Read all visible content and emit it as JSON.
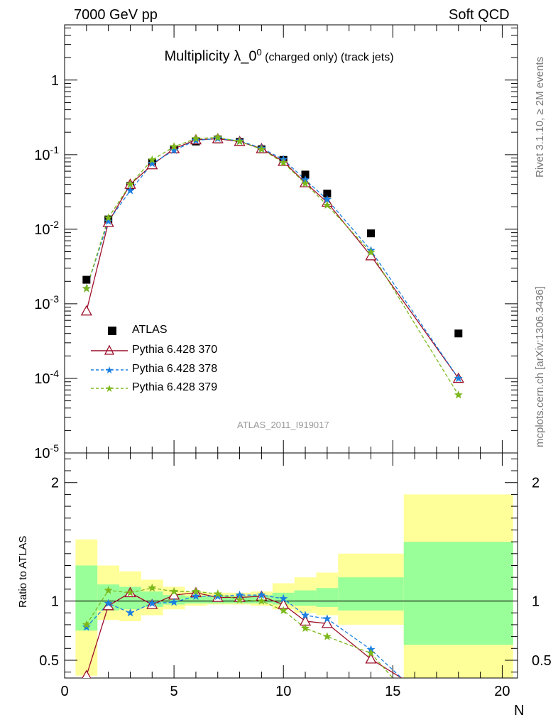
{
  "header": {
    "left": "7000 GeV pp",
    "right": "Soft QCD"
  },
  "title": {
    "main": "Multiplicity λ_0",
    "sup": "0",
    "sub": " (charged only) (track jets)"
  },
  "side_text": {
    "rivet": "Rivet 3.1.10, ≥ 2M events",
    "mcplots": "mcplots.cern.ch [arXiv:1306.3436]"
  },
  "watermark": "ATLAS_2011_I919017",
  "legend": {
    "atlas": "ATLAS",
    "s370": "Pythia 6.428 370",
    "s378": "Pythia 6.428 378",
    "s379": "Pythia 6.428 379"
  },
  "axes": {
    "xlabel": "N",
    "ratio_ylabel": "Ratio to ATLAS"
  },
  "colors": {
    "atlas": "#000000",
    "s370": "#9c0f2a",
    "s378": "#1a7fe0",
    "s379": "#7cb81c",
    "band_outer": "#ffff99",
    "band_inner": "#99ff99"
  },
  "chart_data": [
    {
      "type": "scatter",
      "panel": "main",
      "yscale": "log",
      "xlim": [
        0,
        20.7
      ],
      "ylim": [
        1e-05,
        5.5
      ],
      "y_tick_labels": [
        "10^-5",
        "10^-4",
        "10^-3",
        "10^-2",
        "10^-1",
        "1"
      ],
      "series": [
        {
          "name": "ATLAS",
          "x": [
            1,
            2,
            3,
            4,
            5,
            6,
            7,
            8,
            9,
            10,
            11,
            12,
            14,
            18
          ],
          "values": [
            0.0021,
            0.0135,
            0.038,
            0.078,
            0.118,
            0.15,
            0.16,
            0.148,
            0.118,
            0.085,
            0.054,
            0.03,
            0.0088,
            0.0004
          ]
        },
        {
          "name": "Pythia 6.428 370",
          "x": [
            1,
            2,
            3,
            4,
            5,
            6,
            7,
            8,
            9,
            10,
            11,
            12,
            14,
            18
          ],
          "values": [
            0.0008,
            0.0123,
            0.04,
            0.073,
            0.12,
            0.158,
            0.163,
            0.15,
            0.12,
            0.081,
            0.042,
            0.023,
            0.0044,
            0.0001
          ]
        },
        {
          "name": "Pythia 6.428 378",
          "x": [
            1,
            2,
            3,
            4,
            5,
            6,
            7,
            8,
            9,
            10,
            11,
            12,
            14,
            18
          ],
          "values": [
            0.0016,
            0.0128,
            0.033,
            0.076,
            0.114,
            0.155,
            0.165,
            0.153,
            0.122,
            0.086,
            0.046,
            0.025,
            0.0052,
            0.0001
          ]
        },
        {
          "name": "Pythia 6.428 379",
          "x": [
            1,
            2,
            3,
            4,
            5,
            6,
            7,
            8,
            9,
            10,
            11,
            12,
            14,
            18
          ],
          "values": [
            0.0016,
            0.0142,
            0.04,
            0.085,
            0.128,
            0.164,
            0.17,
            0.15,
            0.118,
            0.078,
            0.041,
            0.021,
            0.0049,
            6e-05
          ]
        }
      ]
    },
    {
      "type": "line",
      "panel": "ratio",
      "xlim": [
        0,
        20.7
      ],
      "ylim": [
        0.35,
        2.25
      ],
      "xticks": [
        0,
        5,
        10,
        15,
        20
      ],
      "yticks": [
        0.5,
        1,
        2
      ],
      "reference_line": 1,
      "series": [
        {
          "name": "Pythia 6.428 370",
          "x": [
            1,
            2,
            3,
            4,
            5,
            6,
            7,
            8,
            9,
            10,
            11,
            12,
            14,
            15.4
          ],
          "values": [
            0.37,
            0.96,
            1.07,
            0.97,
            1.05,
            1.07,
            1.03,
            1.03,
            1.04,
            0.97,
            0.83,
            0.81,
            0.51,
            0.35
          ]
        },
        {
          "name": "Pythia 6.428 378",
          "x": [
            1,
            2,
            3,
            4,
            5,
            6,
            7,
            8,
            9,
            10,
            11,
            12,
            14,
            15.4
          ],
          "values": [
            0.78,
            0.98,
            0.9,
            0.98,
            0.99,
            1.04,
            1.04,
            1.05,
            1.05,
            1.02,
            0.88,
            0.85,
            0.59,
            0.35
          ]
        },
        {
          "name": "Pythia 6.428 379",
          "x": [
            1,
            2,
            3,
            4,
            5,
            6,
            7,
            8,
            9,
            10,
            11,
            12,
            14,
            15
          ],
          "values": [
            0.8,
            1.09,
            1.07,
            1.11,
            1.08,
            1.08,
            1.06,
            1.01,
            1.0,
            0.92,
            0.77,
            0.7,
            0.56,
            0.35
          ]
        }
      ],
      "bands": [
        {
          "x0": 0.5,
          "x1": 1.5,
          "outer": [
            0.37,
            1.52
          ],
          "inner": [
            0.75,
            1.3
          ]
        },
        {
          "x0": 1.5,
          "x1": 2.5,
          "outer": [
            0.84,
            1.3
          ],
          "inner": [
            0.92,
            1.14
          ]
        },
        {
          "x0": 2.5,
          "x1": 3.5,
          "outer": [
            0.83,
            1.25
          ],
          "inner": [
            0.93,
            1.12
          ]
        },
        {
          "x0": 3.5,
          "x1": 4.5,
          "outer": [
            0.88,
            1.18
          ],
          "inner": [
            0.95,
            1.08
          ]
        },
        {
          "x0": 4.5,
          "x1": 5.5,
          "outer": [
            0.93,
            1.12
          ],
          "inner": [
            0.97,
            1.05
          ]
        },
        {
          "x0": 5.5,
          "x1": 6.5,
          "outer": [
            0.96,
            1.08
          ],
          "inner": [
            0.98,
            1.04
          ]
        },
        {
          "x0": 6.5,
          "x1": 7.5,
          "outer": [
            0.97,
            1.07
          ],
          "inner": [
            0.98,
            1.04
          ]
        },
        {
          "x0": 7.5,
          "x1": 8.5,
          "outer": [
            0.97,
            1.07
          ],
          "inner": [
            0.98,
            1.04
          ]
        },
        {
          "x0": 8.5,
          "x1": 9.5,
          "outer": [
            0.96,
            1.08
          ],
          "inner": [
            0.98,
            1.05
          ]
        },
        {
          "x0": 9.5,
          "x1": 10.5,
          "outer": [
            0.93,
            1.15
          ],
          "inner": [
            0.97,
            1.07
          ]
        },
        {
          "x0": 10.5,
          "x1": 11.5,
          "outer": [
            0.9,
            1.2
          ],
          "inner": [
            0.96,
            1.09
          ]
        },
        {
          "x0": 11.5,
          "x1": 12.5,
          "outer": [
            0.88,
            1.24
          ],
          "inner": [
            0.95,
            1.11
          ]
        },
        {
          "x0": 12.5,
          "x1": 15.5,
          "outer": [
            0.8,
            1.4
          ],
          "inner": [
            0.92,
            1.2
          ]
        },
        {
          "x0": 15.5,
          "x1": 20.5,
          "outer": [
            0.3,
            1.9
          ],
          "inner": [
            0.63,
            1.5
          ]
        }
      ]
    }
  ]
}
